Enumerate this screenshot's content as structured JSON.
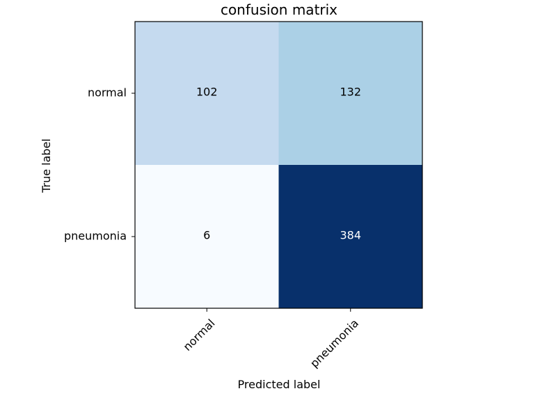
{
  "chart_data": {
    "type": "heatmap",
    "title": "confusion matrix",
    "xlabel": "Predicted label",
    "ylabel": "True label",
    "x_categories": [
      "normal",
      "pneumonia"
    ],
    "y_categories": [
      "normal",
      "pneumonia"
    ],
    "values": [
      [
        102,
        132
      ],
      [
        6,
        384
      ]
    ],
    "colormap": "Blues",
    "colorbar": false,
    "grid": false,
    "x_tick_rotation": 45
  }
}
